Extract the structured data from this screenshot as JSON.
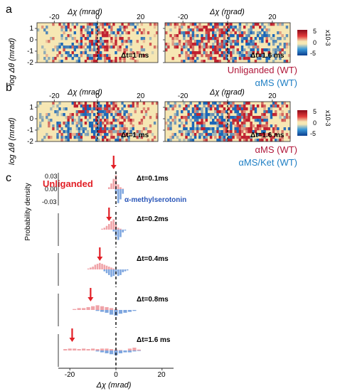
{
  "panel_letters": [
    "a",
    "b",
    "c"
  ],
  "heatmap_axes": {
    "xlabel": "Δχ (mrad)",
    "ylabel": "log Δθ (mrad)",
    "xticks": [
      "-20",
      "0",
      "20"
    ],
    "yticks": [
      "1",
      "0",
      "-1",
      "-2"
    ]
  },
  "colorbar": {
    "ticks": [
      "5",
      "0",
      "-5"
    ],
    "unit": "x10-3"
  },
  "panel_a": {
    "maps": [
      {
        "dt_label": "Δt=1 ms"
      },
      {
        "dt_label": "Δt=1.6 ms"
      }
    ],
    "legend": [
      {
        "label": "Unliganded (WT)",
        "color": "#b0183a"
      },
      {
        "label": "αMS (WT)",
        "color": "#1f7fc4"
      }
    ]
  },
  "panel_b": {
    "maps": [
      {
        "dt_label": "Δt=1 ms"
      },
      {
        "dt_label": "Δt=1.6 ms"
      }
    ],
    "legend": [
      {
        "label": "αMS (WT)",
        "color": "#b0183a"
      },
      {
        "label": "αMS/Ket (WT)",
        "color": "#1f7fc4"
      }
    ]
  },
  "panel_c": {
    "ylabel": "Probability density",
    "yticks": [
      "0.03",
      "0.00",
      "-0.03"
    ],
    "xticks": [
      "-20",
      "0",
      "20"
    ],
    "xlabel": "Δχ (mrad)",
    "series_labels": [
      {
        "label": "Unliganded",
        "color": "#e21f26"
      },
      {
        "label": "α-methylserotonin",
        "color": "#2a56b8"
      }
    ],
    "time_labels": [
      "Δt=0.1ms",
      "Δt=0.2ms",
      "Δt=0.4ms",
      "Δt=0.8ms",
      "Δt=1.6 ms"
    ]
  },
  "colors": {
    "heat_background": "#f6e7b4",
    "positive": "#c0202f",
    "negative": "#1b67b8",
    "bar_upper": "#f0a3a8",
    "bar_lower": "#7ea6df",
    "arrow": "#e21f26"
  },
  "chart_data": [
    {
      "type": "heatmap",
      "panel": "a",
      "title": "Δt=1 ms",
      "xlabel": "Δχ (mrad)",
      "ylabel": "log Δθ (mrad)",
      "xlim": [
        -28,
        28
      ],
      "ylim": [
        -2,
        1.5
      ],
      "colorbar_range": [
        -5,
        5
      ],
      "pattern": {
        "center": 0,
        "half_width": 15,
        "peak_sign_left": -1,
        "peak_sign_right": 1,
        "density": 0.55
      }
    },
    {
      "type": "heatmap",
      "panel": "a",
      "title": "Δt=1.6 ms",
      "xlabel": "Δχ (mrad)",
      "ylabel": "log Δθ (mrad)",
      "xlim": [
        -28,
        28
      ],
      "ylim": [
        -2,
        1.5
      ],
      "colorbar_range": [
        -5,
        5
      ],
      "pattern": {
        "center": 0,
        "half_width": 20,
        "peak_sign_left": 1,
        "peak_sign_right": -1,
        "density": 0.6
      }
    },
    {
      "type": "heatmap",
      "panel": "b",
      "title": "Δt=1 ms",
      "xlabel": "Δχ (mrad)",
      "ylabel": "log Δθ (mrad)",
      "xlim": [
        -28,
        28
      ],
      "ylim": [
        -2,
        1.5
      ],
      "colorbar_range": [
        -5,
        5
      ],
      "pattern": {
        "center": 0,
        "half_width": 15,
        "peak_sign_left": -1,
        "peak_sign_right": 1,
        "density": 0.6
      }
    },
    {
      "type": "heatmap",
      "panel": "b",
      "title": "Δt=1.6 ms",
      "xlabel": "Δχ (mrad)",
      "ylabel": "log Δθ (mrad)",
      "xlim": [
        -28,
        28
      ],
      "ylim": [
        -2,
        1.5
      ],
      "colorbar_range": [
        -5,
        5
      ],
      "pattern": {
        "center": 0,
        "half_width": 22,
        "peak_sign_left": -1,
        "peak_sign_right": 1,
        "density": 0.65
      }
    },
    {
      "type": "bar",
      "panel": "c",
      "title": "Δt=0.1ms",
      "xlim": [
        -25,
        25
      ],
      "ylim": [
        -0.035,
        0.035
      ],
      "x": [
        -3,
        -2,
        -1,
        0,
        1,
        2,
        3
      ],
      "series": [
        {
          "name": "Unliganded",
          "values": [
            0.004,
            0.012,
            0.022,
            0.03,
            0.01,
            0.004,
            0.001
          ]
        },
        {
          "name": "α-methylserotonin",
          "values": [
            0,
            0,
            0,
            -0.01,
            -0.03,
            -0.022,
            -0.01
          ]
        }
      ],
      "arrow_x": -1
    },
    {
      "type": "bar",
      "panel": "c",
      "title": "Δt=0.2ms",
      "xlim": [
        -25,
        25
      ],
      "ylim": [
        -0.035,
        0.035
      ],
      "x": [
        -6,
        -5,
        -4,
        -3,
        -2,
        -1,
        0,
        1,
        2,
        3,
        4
      ],
      "series": [
        {
          "name": "Unliganded",
          "values": [
            0.002,
            0.004,
            0.008,
            0.012,
            0.018,
            0.022,
            0.012,
            0.004,
            0.002,
            0,
            0
          ]
        },
        {
          "name": "α-methylserotonin",
          "values": [
            0,
            0,
            0,
            0,
            0,
            -0.004,
            -0.014,
            -0.022,
            -0.016,
            -0.006,
            -0.002
          ]
        }
      ],
      "arrow_x": -3
    },
    {
      "type": "bar",
      "panel": "c",
      "title": "Δt=0.4ms",
      "xlim": [
        -25,
        25
      ],
      "ylim": [
        -0.035,
        0.035
      ],
      "x": [
        -12,
        -11,
        -10,
        -9,
        -8,
        -7,
        -6,
        -5,
        -4,
        -3,
        -2,
        -1,
        0,
        1,
        2,
        3,
        4,
        5
      ],
      "series": [
        {
          "name": "Unliganded",
          "values": [
            0.002,
            0.004,
            0.006,
            0.01,
            0.012,
            0.014,
            0.012,
            0.01,
            0.008,
            0.006,
            0.004,
            0.002,
            0,
            0,
            0,
            0,
            0,
            0
          ]
        },
        {
          "name": "α-methylserotonin",
          "values": [
            0,
            0,
            0,
            0,
            0,
            0,
            0,
            -0.004,
            -0.008,
            -0.012,
            -0.016,
            -0.014,
            -0.01,
            -0.014,
            -0.012,
            -0.006,
            -0.004,
            -0.002
          ]
        }
      ],
      "arrow_x": -7
    },
    {
      "type": "bar",
      "panel": "c",
      "title": "Δt=0.8ms",
      "xlim": [
        -25,
        25
      ],
      "ylim": [
        -0.035,
        0.035
      ],
      "x": [
        -18,
        -16,
        -14,
        -12,
        -10,
        -8,
        -6,
        -4,
        -2,
        0,
        2,
        4,
        6,
        8
      ],
      "series": [
        {
          "name": "Unliganded",
          "values": [
            0.002,
            0.004,
            0.004,
            0.006,
            0.008,
            0.01,
            0.008,
            0.006,
            0.004,
            0.002,
            0,
            0,
            0,
            0
          ]
        },
        {
          "name": "α-methylserotonin",
          "values": [
            0,
            0,
            0,
            0,
            0,
            -0.002,
            -0.004,
            -0.006,
            -0.01,
            -0.012,
            -0.008,
            -0.006,
            -0.004,
            -0.002
          ]
        }
      ],
      "arrow_x": -11
    },
    {
      "type": "bar",
      "panel": "c",
      "title": "Δt=1.6 ms",
      "xlim": [
        -25,
        25
      ],
      "ylim": [
        -0.035,
        0.035
      ],
      "x": [
        -22,
        -20,
        -18,
        -16,
        -14,
        -12,
        -10,
        -8,
        -6,
        -4,
        -2,
        0,
        2,
        4,
        6,
        8,
        10
      ],
      "series": [
        {
          "name": "Unliganded",
          "values": [
            0.003,
            0.004,
            0.004,
            0.003,
            0.004,
            0.003,
            0.004,
            0.003,
            0.004,
            0.004,
            0.003,
            0.002,
            0.001,
            0,
            0.004,
            0.006,
            0.002
          ]
        },
        {
          "name": "α-methylserotonin",
          "values": [
            0,
            0,
            0,
            0,
            0,
            0,
            0,
            -0.002,
            -0.004,
            -0.006,
            -0.008,
            -0.01,
            -0.006,
            -0.004,
            -0.004,
            -0.002,
            -0.001
          ]
        }
      ],
      "arrow_x": -19
    }
  ]
}
